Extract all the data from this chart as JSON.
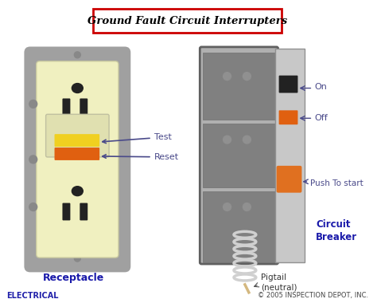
{
  "title": "Ground Fault Circuit Interrupters",
  "title_color": "#000000",
  "title_box_color": "#cc0000",
  "bg_color": "#ffffff",
  "label_test": "Test",
  "label_reset": "Reset",
  "label_receptacle": "Receptacle",
  "label_on": "On",
  "label_off": "Off",
  "label_push": "Push To start",
  "label_circuit": "Circuit\nBreaker",
  "label_pigtail": "Pigtail\n(neutral)",
  "label_electrical": "ELECTRICAL",
  "label_copyright": "© 2005 INSPECTION DEPOT, INC.",
  "arrow_color": "#4a4a8a",
  "receptacle_body_color": "#f0f0c0",
  "receptacle_frame_color": "#a0a0a0",
  "breaker_body_color": "#b0b0b0",
  "breaker_dark_color": "#808080",
  "yellow_button_color": "#f0d020",
  "orange_button_color": "#e06010",
  "breaker_orange_small": "#e06010",
  "breaker_orange_large": "#e07020",
  "slot_color": "#222222",
  "screw_color": "#888888",
  "wire_color": "#d0d0d0",
  "pigtail_color": "#d4b880"
}
